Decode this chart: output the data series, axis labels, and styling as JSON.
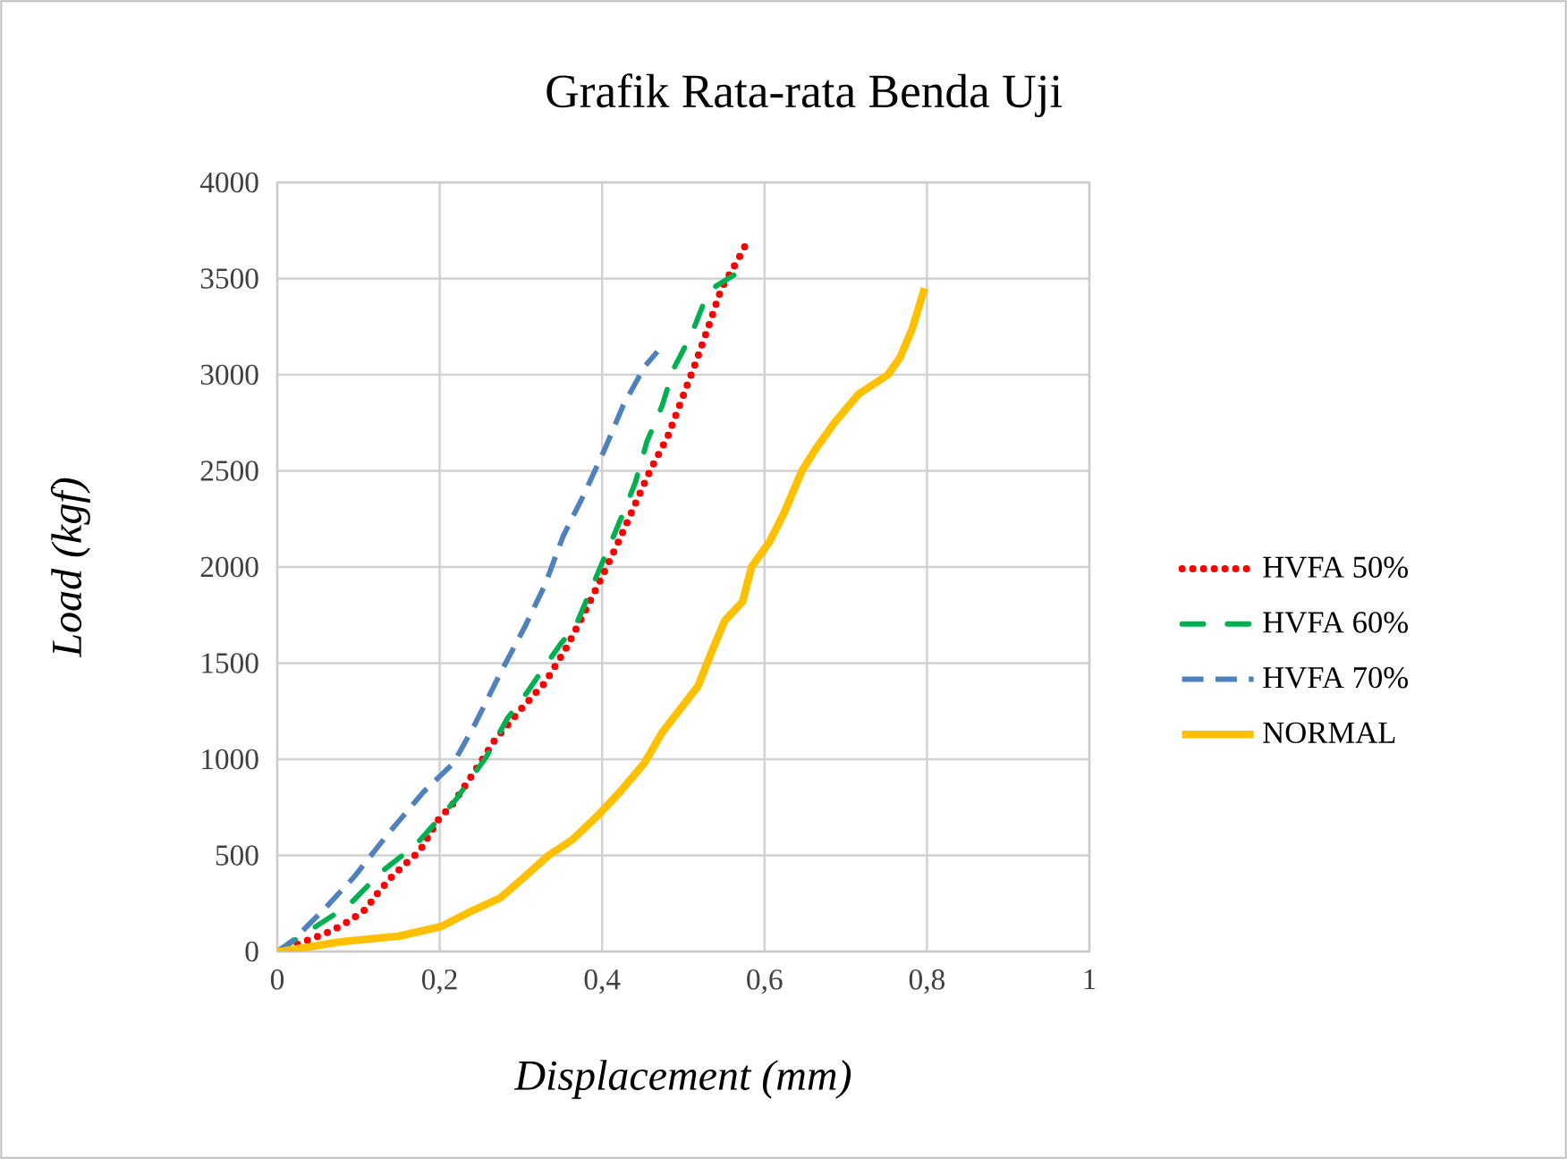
{
  "chart_data": {
    "type": "line",
    "title": "Grafik Rata-rata Benda Uji",
    "xlabel": "Displacement (mm)",
    "ylabel": "Load (kgf)",
    "xlim": [
      0,
      1
    ],
    "xticks": [
      0,
      {
        "value": 0.2,
        "label": "0,2"
      },
      {
        "value": 0.4,
        "label": "0,4"
      },
      {
        "value": 0.6,
        "label": "0,6"
      },
      {
        "value": 0.8,
        "label": "0,8"
      },
      1
    ],
    "ylim": [
      0,
      4000
    ],
    "yticks": [
      0,
      500,
      1000,
      1500,
      2000,
      2500,
      3000,
      3500,
      4000
    ],
    "grid": true,
    "legend": "right",
    "series": [
      {
        "name": "HVFA 50%",
        "color": "#ff0000",
        "line_style": "dotted",
        "x": [
          0,
          0.045,
          0.068,
          0.089,
          0.109,
          0.123,
          0.139,
          0.156,
          0.175,
          0.199,
          0.215,
          0.242,
          0.268,
          0.3,
          0.33,
          0.356,
          0.378,
          0.4,
          0.42,
          0.439,
          0.459,
          0.481,
          0.498,
          0.515,
          0.531,
          0.547,
          0.558,
          0.57,
          0.581
        ],
        "values": [
          0,
          70,
          110,
          160,
          220,
          300,
          380,
          450,
          520,
          690,
          760,
          930,
          1100,
          1260,
          1400,
          1580,
          1760,
          1950,
          2130,
          2310,
          2500,
          2680,
          2870,
          3060,
          3250,
          3450,
          3530,
          3620,
          3710
        ]
      },
      {
        "name": "HVFA 60%",
        "color": "#00b050",
        "line_style": "dashdot",
        "x": [
          0,
          0.051,
          0.088,
          0.127,
          0.154,
          0.176,
          0.22,
          0.257,
          0.283,
          0.308,
          0.334,
          0.349,
          0.367,
          0.389,
          0.405,
          0.426,
          0.441,
          0.455,
          0.474,
          0.488,
          0.51,
          0.525,
          0.54,
          0.567
        ],
        "values": [
          0,
          140,
          240,
          410,
          500,
          580,
          790,
          1010,
          1210,
          1350,
          1510,
          1600,
          1690,
          1910,
          2070,
          2280,
          2440,
          2650,
          2840,
          3030,
          3210,
          3370,
          3460,
          3530
        ]
      },
      {
        "name": "HVFA 70%",
        "color": "#4f81bd",
        "line_style": "dashed",
        "x": [
          0,
          0.02,
          0.06,
          0.095,
          0.136,
          0.18,
          0.217,
          0.242,
          0.275,
          0.305,
          0.33,
          0.352,
          0.378,
          0.404,
          0.426,
          0.452,
          0.468
        ],
        "values": [
          0,
          60,
          230,
          390,
          610,
          830,
          980,
          1170,
          1450,
          1690,
          1910,
          2160,
          2380,
          2620,
          2840,
          3040,
          3120
        ]
      },
      {
        "name": "NORMAL",
        "color": "#ffc000",
        "line_style": "solid",
        "x": [
          0,
          0.004,
          0.077,
          0.15,
          0.202,
          0.239,
          0.275,
          0.305,
          0.334,
          0.363,
          0.393,
          0.422,
          0.452,
          0.474,
          0.496,
          0.518,
          0.536,
          0.551,
          0.573,
          0.584,
          0.606,
          0.624,
          0.646,
          0.664,
          0.686,
          0.716,
          0.752,
          0.767,
          0.782,
          0.797
        ],
        "values": [
          0,
          0,
          50,
          80,
          130,
          210,
          280,
          390,
          500,
          580,
          700,
          830,
          980,
          1140,
          1260,
          1380,
          1570,
          1720,
          1820,
          2000,
          2130,
          2280,
          2500,
          2620,
          2750,
          2900,
          3000,
          3090,
          3240,
          3450
        ]
      }
    ]
  }
}
